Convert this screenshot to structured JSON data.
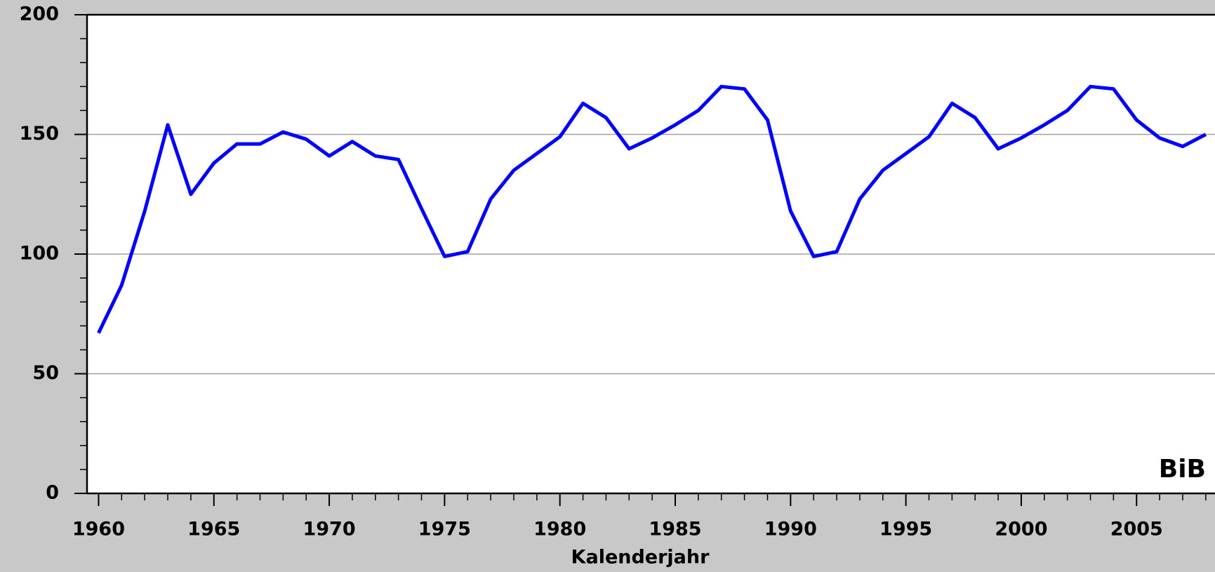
{
  "chart_data": {
    "type": "line",
    "x_label": "Kalenderjahr",
    "watermark": "BiB",
    "x": [
      1960,
      1961,
      1962,
      1963,
      1964,
      1965,
      1966,
      1967,
      1968,
      1969,
      1970,
      1971,
      1972,
      1973,
      1974,
      1975,
      1976,
      1977,
      1978,
      1979,
      1980,
      1981,
      1982,
      1983,
      1984,
      1985,
      1986,
      1987,
      1988,
      1989,
      1990,
      1991,
      1992,
      1993,
      1994,
      1995,
      1996,
      1997,
      1998,
      1999,
      2000,
      2001,
      2002,
      2003,
      2004,
      2005,
      2006,
      2007,
      2008
    ],
    "series": [
      {
        "color": "#0000ff",
        "values": [
          67,
          87,
          118,
          154,
          125,
          138,
          146,
          146,
          151,
          148,
          141,
          147,
          141,
          139.5,
          119,
          99,
          101,
          123,
          135,
          142,
          149,
          163,
          157,
          144,
          148.5,
          154,
          160,
          170,
          169,
          156,
          118,
          99,
          101,
          123,
          135,
          142,
          149,
          163,
          157,
          144,
          148.5,
          154,
          160,
          170,
          169,
          156,
          148.5,
          145,
          150
        ]
      }
    ],
    "xlim": [
      1959.5,
      2008.4
    ],
    "xticks": [
      1960,
      1965,
      1970,
      1975,
      1980,
      1985,
      1990,
      1995,
      2000,
      2005
    ],
    "ylim": [
      0,
      200
    ],
    "yticks": [
      0,
      50,
      100,
      150,
      200
    ],
    "grid": true
  }
}
